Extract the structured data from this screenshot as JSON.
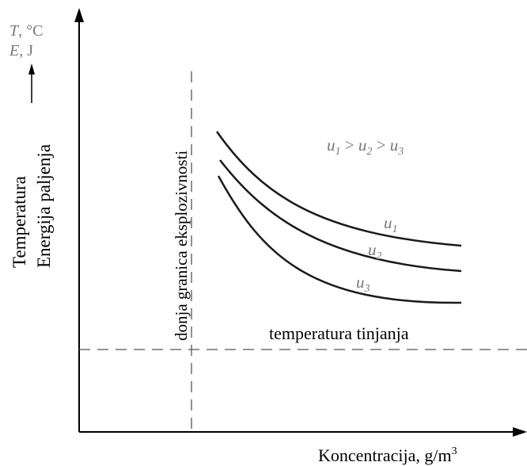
{
  "chart_data": {
    "type": "line",
    "title": "",
    "y_axis": {
      "quantity_1": "T",
      "unit_1": ", °C",
      "quantity_2": "E",
      "unit_2": ", J",
      "label_1": "Temperatura",
      "label_2": "Energija paljenja"
    },
    "x_axis": {
      "label": "Koncentracija, g/m",
      "label_sup": "3"
    },
    "lower_limit_label": "donja granica eksplozivnosti",
    "ignition_temp_label": "temperatura tinjanja",
    "relation": {
      "u1": "u",
      "s1": "1",
      "op1": " > ",
      "u2": "u",
      "s2": "2",
      "op2": " > ",
      "u3": "u",
      "s3": "3"
    },
    "series": [
      {
        "name": "u",
        "sub": "1"
      },
      {
        "name": "u",
        "sub": "2"
      },
      {
        "name": "u",
        "sub": "3"
      }
    ],
    "colors": {
      "line": "#1a1a1a",
      "dash": "#555555",
      "grey_text": "#777777"
    }
  }
}
